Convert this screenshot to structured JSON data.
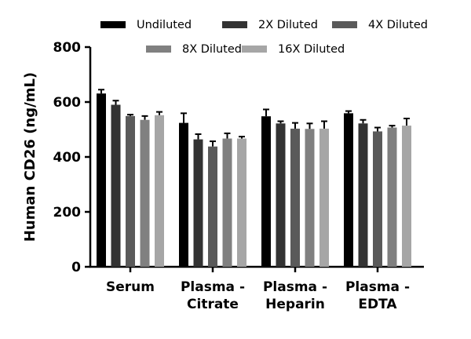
{
  "chart_data": {
    "type": "bar",
    "title": "",
    "xlabel": "",
    "ylabel": "Human CD26 (ng/mL)",
    "ylim": [
      0,
      800
    ],
    "yticks": [
      "0",
      "200",
      "400",
      "600",
      "800"
    ],
    "grid": false,
    "legend_position": "top",
    "categories": [
      [
        "Serum"
      ],
      [
        "Plasma -",
        "Citrate"
      ],
      [
        "Plasma -",
        "Heparin"
      ],
      [
        "Plasma -",
        "EDTA"
      ]
    ],
    "series": [
      {
        "name": "Undiluted",
        "color": "#000000",
        "values": [
          631,
          524,
          548,
          559
        ],
        "errors": [
          14,
          35,
          25,
          8
        ]
      },
      {
        "name": "2X Diluted",
        "color": "#333333",
        "values": [
          590,
          464,
          522,
          522
        ],
        "errors": [
          15,
          19,
          8,
          13
        ]
      },
      {
        "name": "4X Diluted",
        "color": "#5a5a5a",
        "values": [
          549,
          438,
          503,
          493
        ],
        "errors": [
          5,
          19,
          21,
          14
        ]
      },
      {
        "name": "8X Diluted",
        "color": "#808080",
        "values": [
          535,
          467,
          502,
          507
        ],
        "errors": [
          14,
          19,
          20,
          7
        ]
      },
      {
        "name": "16X Diluted",
        "color": "#a6a6a6",
        "values": [
          552,
          467,
          503,
          514
        ],
        "errors": [
          12,
          7,
          27,
          26
        ]
      }
    ]
  }
}
